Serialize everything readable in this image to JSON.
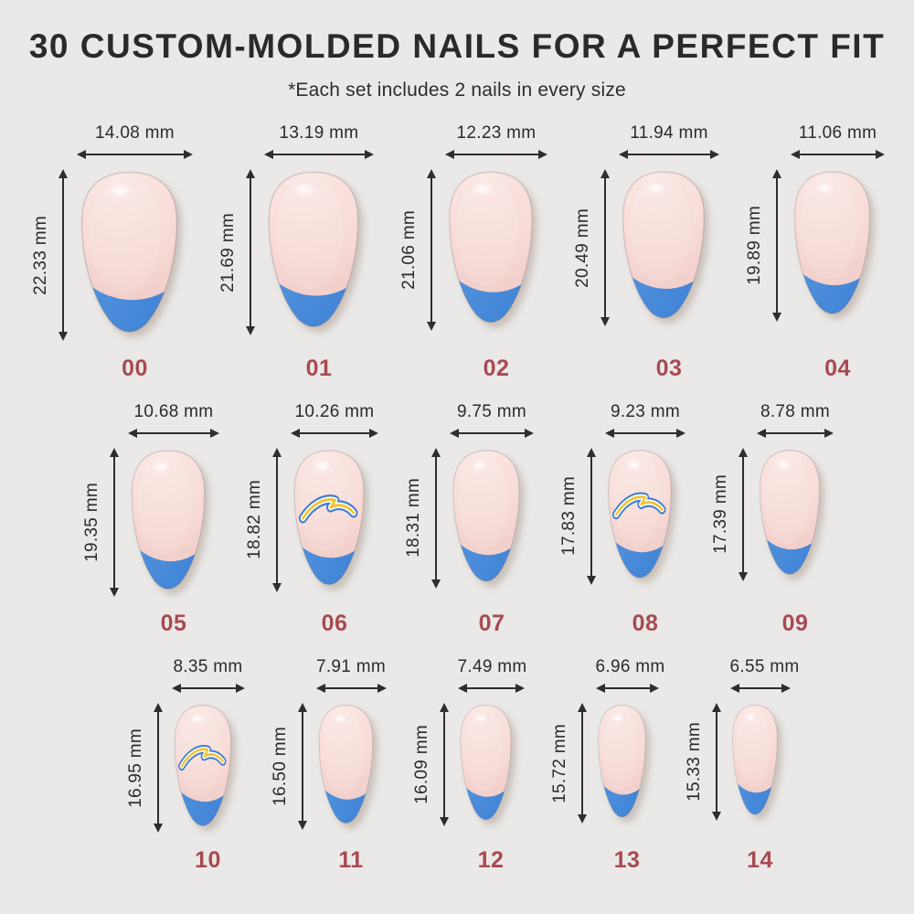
{
  "header": {
    "title": "30 CUSTOM-MOLDED NAILS FOR A PERFECT FIT",
    "subtitle": "*Each set includes 2 nails in every size"
  },
  "colors": {
    "background": "#eae9e7",
    "text_dark": "#2b2929",
    "size_number_red": "#a84a52",
    "nail_pink_light": "#fbe9e5",
    "nail_pink": "#f8ddd9",
    "nail_pink_edge": "#f0ccc8",
    "tip_blue_light": "#5e9de2",
    "tip_blue": "#3c80d4",
    "logo_outline_blue": "#3d7ecf",
    "logo_inner_white": "#ffffff",
    "logo_bolt_yellow": "#f2c43c"
  },
  "logo_name": "lightning-bolt-logo",
  "nails": [
    {
      "size_label": "00",
      "width_label": "14.08 mm",
      "length_label": "22.33 mm",
      "logo": false
    },
    {
      "size_label": "01",
      "width_label": "13.19 mm",
      "length_label": "21.69 mm",
      "logo": false
    },
    {
      "size_label": "02",
      "width_label": "12.23 mm",
      "length_label": "21.06 mm",
      "logo": false
    },
    {
      "size_label": "03",
      "width_label": "11.94 mm",
      "length_label": "20.49 mm",
      "logo": false
    },
    {
      "size_label": "04",
      "width_label": "11.06 mm",
      "length_label": "19.89 mm",
      "logo": false
    },
    {
      "size_label": "05",
      "width_label": "10.68 mm",
      "length_label": "19.35 mm",
      "logo": false
    },
    {
      "size_label": "06",
      "width_label": "10.26 mm",
      "length_label": "18.82 mm",
      "logo": true
    },
    {
      "size_label": "07",
      "width_label": "9.75 mm",
      "length_label": "18.31 mm",
      "logo": false
    },
    {
      "size_label": "08",
      "width_label": "9.23 mm",
      "length_label": "17.83 mm",
      "logo": true
    },
    {
      "size_label": "09",
      "width_label": "8.78 mm",
      "length_label": "17.39 mm",
      "logo": false
    },
    {
      "size_label": "10",
      "width_label": "8.35 mm",
      "length_label": "16.95 mm",
      "logo": true
    },
    {
      "size_label": "11",
      "width_label": "7.91 mm",
      "length_label": "16.50 mm",
      "logo": false
    },
    {
      "size_label": "12",
      "width_label": "7.49 mm",
      "length_label": "16.09 mm",
      "logo": false
    },
    {
      "size_label": "13",
      "width_label": "6.96 mm",
      "length_label": "15.72 mm",
      "logo": false
    },
    {
      "size_label": "14",
      "width_label": "6.55 mm",
      "length_label": "15.33 mm",
      "logo": false
    }
  ]
}
